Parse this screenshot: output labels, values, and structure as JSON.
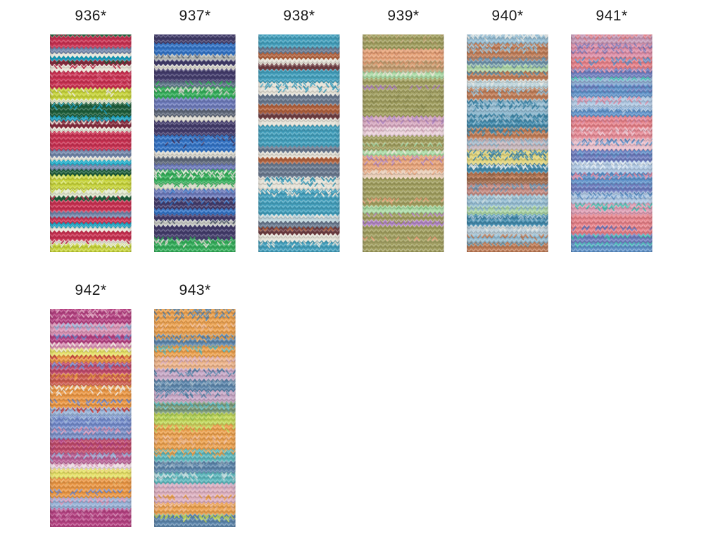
{
  "page": {
    "background": "#ffffff"
  },
  "card": {
    "label_color": "#1a1a1a",
    "swatches": [
      {
        "id": "936",
        "label": "936*",
        "row": 0,
        "col": 0,
        "stripes": [
          [
            6,
            "#1f5a36",
            "#b5274a",
            0.35
          ],
          [
            16,
            "#cc2e50",
            "",
            0
          ],
          [
            8,
            "#7186ab",
            "",
            0
          ],
          [
            5,
            "#e9e6d9",
            "",
            0
          ],
          [
            5,
            "#12a0c0",
            "",
            0
          ],
          [
            7,
            "#86293c",
            "#1f5a36",
            0.4
          ],
          [
            9,
            "#e9e6d9",
            "#cc2e50",
            0.2
          ],
          [
            24,
            "#cc2e50",
            "#e0607e",
            0.12
          ],
          [
            16,
            "#c6d335",
            "#e9e6d9",
            0.2
          ],
          [
            5,
            "#e4ead0",
            "",
            0
          ],
          [
            19,
            "#1a5c38",
            "#12a0c0",
            0.15
          ],
          [
            6,
            "#12a0c0",
            "#1a5c38",
            0.3
          ],
          [
            10,
            "#86293c",
            "#e9e6d9",
            0.35
          ],
          [
            6,
            "#e9e6d9",
            "",
            0
          ],
          [
            26,
            "#cc2e50",
            "",
            0
          ],
          [
            10,
            "#7186ab",
            "",
            0
          ],
          [
            5,
            "#e9e6d9",
            "",
            0
          ],
          [
            6,
            "#18aecb",
            "",
            0
          ],
          [
            7,
            "#7186ab",
            "",
            0
          ],
          [
            8,
            "#1a5c38",
            "",
            0
          ],
          [
            20,
            "#c6d335",
            "#dce67a",
            0.25
          ],
          [
            10,
            "#e4ead0",
            "#c6d335",
            0.3
          ],
          [
            6,
            "#1a5c38",
            "#cc2e50",
            0.35
          ],
          [
            16,
            "#cc2e50",
            "",
            0
          ],
          [
            8,
            "#7186ab",
            "",
            0
          ],
          [
            8,
            "#cc2e50",
            "",
            0
          ],
          [
            6,
            "#12a0c0",
            "",
            0
          ],
          [
            6,
            "#e9e6d9",
            "",
            0
          ],
          [
            13,
            "#cc2e50",
            "",
            0
          ],
          [
            5,
            "#e9e6d9",
            "#cc2e50",
            0.2
          ],
          [
            8,
            "#c6d335",
            "#e4ead0",
            0.45
          ]
        ]
      },
      {
        "id": "937",
        "label": "937*",
        "row": 0,
        "col": 1,
        "stripes": [
          [
            16,
            "#3f3a69",
            "",
            0
          ],
          [
            16,
            "#2f72c8",
            "",
            0
          ],
          [
            8,
            "#b9bdb9",
            "#5c6678",
            0.4
          ],
          [
            7,
            "#3f3a69",
            "",
            0
          ],
          [
            6,
            "#dedcd2",
            "",
            0
          ],
          [
            17,
            "#413a6b",
            "",
            0
          ],
          [
            8,
            "#5c7488",
            "#2fae57",
            0.3
          ],
          [
            16,
            "#2fae57",
            "#c9cfc4",
            0.45
          ],
          [
            16,
            "#6b79bc",
            "",
            0
          ],
          [
            10,
            "#5c6678",
            "",
            0
          ],
          [
            7,
            "#dedcd2",
            "",
            0
          ],
          [
            20,
            "#413a6b",
            "",
            0
          ],
          [
            23,
            "#2f72c8",
            "#3f3a69",
            0.15
          ],
          [
            8,
            "#dedcd2",
            "",
            0
          ],
          [
            10,
            "#5c6678",
            "",
            0
          ],
          [
            8,
            "#6b79bc",
            "",
            0
          ],
          [
            20,
            "#2fae57",
            "#dee2d4",
            0.5
          ],
          [
            8,
            "#d7dcc8",
            "#2fae57",
            0.3
          ],
          [
            12,
            "#6b79bc",
            "#2f72c8",
            0.2
          ],
          [
            16,
            "#413a6b",
            "#2f72c8",
            0.3
          ],
          [
            8,
            "#2f72c8",
            "",
            0
          ],
          [
            8,
            "#413a6b",
            "",
            0
          ],
          [
            8,
            "#c9cbc6",
            "#5c6678",
            0.35
          ],
          [
            16,
            "#413a6b",
            "",
            0
          ],
          [
            4,
            "#413a6b",
            "#2fae57",
            0.5
          ],
          [
            14,
            "#2fae57",
            "#dedcd2",
            0.25
          ]
        ]
      },
      {
        "id": "938",
        "label": "938*",
        "row": 0,
        "col": 2,
        "stripes": [
          [
            22,
            "#3f9fbd",
            "",
            0
          ],
          [
            8,
            "#68788f",
            "",
            0
          ],
          [
            8,
            "#b2603a",
            "",
            0
          ],
          [
            8,
            "#e6e3d8",
            "",
            0
          ],
          [
            8,
            "#6f3d41",
            "",
            0
          ],
          [
            18,
            "#3f9fbd",
            "",
            0
          ],
          [
            18,
            "#e6e3d8",
            "#3f9fbd",
            0.45
          ],
          [
            14,
            "#68788f",
            "",
            0
          ],
          [
            12,
            "#b2603a",
            "",
            0
          ],
          [
            8,
            "#6f3d41",
            "",
            0
          ],
          [
            10,
            "#e6e3d8",
            "",
            0
          ],
          [
            30,
            "#3f9fbd",
            "",
            0
          ],
          [
            8,
            "#68788f",
            "",
            0
          ],
          [
            8,
            "#e6e3d8",
            "",
            0
          ],
          [
            8,
            "#b2603a",
            "",
            0
          ],
          [
            20,
            "#68788f",
            "",
            0
          ],
          [
            18,
            "#e6e3d8",
            "#3f9fbd",
            0.45
          ],
          [
            16,
            "#3f9fbd",
            "#e6e3d8",
            0.35
          ],
          [
            20,
            "#3f9fbd",
            "",
            0
          ],
          [
            10,
            "#bcd3da",
            "#e6e3d8",
            0.3
          ],
          [
            8,
            "#68788f",
            "",
            0
          ],
          [
            10,
            "#6f3d41",
            "#b2603a",
            0.35
          ],
          [
            10,
            "#e6e3d8",
            "",
            0
          ],
          [
            12,
            "#3f9fbd",
            "#e6e3d8",
            0.3
          ]
        ]
      },
      {
        "id": "939",
        "label": "939*",
        "row": 0,
        "col": 3,
        "stripes": [
          [
            24,
            "#a09e5c",
            "#b8a06a",
            0.2
          ],
          [
            16,
            "#e9a377",
            "#d88f6a",
            0.2
          ],
          [
            16,
            "#c29a6c",
            "#e9a377",
            0.4
          ],
          [
            10,
            "#abdca6",
            "#eae2cf",
            0.4
          ],
          [
            10,
            "#a09e5c",
            "",
            0
          ],
          [
            10,
            "#a09e5c",
            "#b285c4",
            0.45
          ],
          [
            34,
            "#a09e5c",
            "#8f9050",
            0.2
          ],
          [
            16,
            "#d8a8c0",
            "#b285c4",
            0.4
          ],
          [
            12,
            "#ecd3dc",
            "#e0b8c8",
            0.3
          ],
          [
            10,
            "#a09e5c",
            "",
            0
          ],
          [
            10,
            "#a09e5c",
            "#abdca6",
            0.3
          ],
          [
            8,
            "#abdca6",
            "#eae2cf",
            0.35
          ],
          [
            20,
            "#e9a377",
            "#b285c4",
            0.3
          ],
          [
            12,
            "#eccfb8",
            "#e9a377",
            0.3
          ],
          [
            28,
            "#a09e5c",
            "",
            0
          ],
          [
            12,
            "#a09e5c",
            "#e9a377",
            0.35
          ],
          [
            10,
            "#abdca6",
            "#8fcf8a",
            0.3
          ],
          [
            10,
            "#a09e5c",
            "#b285c4",
            0.3
          ],
          [
            8,
            "#b285c4",
            "#a09e5c",
            0.3
          ],
          [
            16,
            "#a09e5c",
            "",
            0
          ],
          [
            8,
            "#a09e5c",
            "#e9a377",
            0.3
          ],
          [
            10,
            "#a09e5c",
            "",
            0
          ]
        ]
      },
      {
        "id": "940",
        "label": "940*",
        "row": 0,
        "col": 4,
        "stripes": [
          [
            16,
            "#93bcd3",
            "#e3e6e2",
            0.55
          ],
          [
            20,
            "#c07b54",
            "#93bcd3",
            0.5
          ],
          [
            10,
            "#6e93ad",
            "#c07b54",
            0.45
          ],
          [
            10,
            "#a9d4a4",
            "#6e93ad",
            0.5
          ],
          [
            12,
            "#c07b54",
            "#5a8fa8",
            0.55
          ],
          [
            12,
            "#bcd3da",
            "#e3e6e2",
            0.55
          ],
          [
            16,
            "#c07b54",
            "#93bcd3",
            0.45
          ],
          [
            20,
            "#93bcd3",
            "#3d88ab",
            0.5
          ],
          [
            20,
            "#3d88ab",
            "#93bcd3",
            0.55
          ],
          [
            16,
            "#c07b54",
            "#3d88ab",
            0.55
          ],
          [
            16,
            "#c6b6bc",
            "#93bcd3",
            0.5
          ],
          [
            20,
            "#e2d57a",
            "#3d88ab",
            0.6
          ],
          [
            12,
            "#3d88ab",
            "#e3e6e2",
            0.55
          ],
          [
            16,
            "#a06a4a",
            "#c07b54",
            0.55
          ],
          [
            16,
            "#c48a80",
            "#6e93ad",
            0.55
          ],
          [
            16,
            "#93bcd3",
            "#bcd3da",
            0.45
          ],
          [
            12,
            "#a9d4a4",
            "#93bcd3",
            0.5
          ],
          [
            16,
            "#3d88ab",
            "#93bcd3",
            0.55
          ],
          [
            12,
            "#b8cdd8",
            "#e3e6e2",
            0.45
          ],
          [
            12,
            "#93bcd3",
            "#c07b54",
            0.55
          ],
          [
            10,
            "#c07b54",
            "#5a8fa8",
            0.55
          ]
        ]
      },
      {
        "id": "941",
        "label": "941*",
        "row": 0,
        "col": 5,
        "stripes": [
          [
            16,
            "#c79ab8",
            "#e87f88",
            0.52
          ],
          [
            20,
            "#df8ea8",
            "#8379b8",
            0.52
          ],
          [
            16,
            "#e87f88",
            "#5e92cb",
            0.42
          ],
          [
            12,
            "#6d7cc0",
            "#df8ea8",
            0.42
          ],
          [
            10,
            "#8fb0d4",
            "#43c2b4",
            0.55
          ],
          [
            18,
            "#5e92cb",
            "#6d7cc0",
            0.52
          ],
          [
            16,
            "#aec8e4",
            "#df8ea8",
            0.47
          ],
          [
            12,
            "#5e92cb",
            "#aec8e4",
            0.42
          ],
          [
            16,
            "#e87f88",
            "#df8ea8",
            0.37
          ],
          [
            16,
            "#e88a96",
            "#ecc0cc",
            0.42
          ],
          [
            16,
            "#ecc0cc",
            "#5e92cb",
            0.42
          ],
          [
            16,
            "#6d7cc0",
            "#5e92cb",
            0.47
          ],
          [
            16,
            "#aec8e4",
            "#e3ecf4",
            0.42
          ],
          [
            16,
            "#5e92cb",
            "#df8ea8",
            0.47
          ],
          [
            12,
            "#6d7cc0",
            "#5e92cb",
            0.27
          ],
          [
            16,
            "#aec8e4",
            "#5e92cb",
            0.42
          ],
          [
            16,
            "#df9eb4",
            "#43c2b4",
            0.47
          ],
          [
            16,
            "#e87f88",
            "#e88a96",
            0.22
          ],
          [
            12,
            "#e87f88",
            "#6d7cc0",
            0.42
          ],
          [
            12,
            "#6d7cc0",
            "#43c2b4",
            0.47
          ],
          [
            10,
            "#5e92cb",
            "#43c2b4",
            0.52
          ]
        ]
      },
      {
        "id": "942",
        "label": "942*",
        "row": 1,
        "col": 0,
        "stripes": [
          [
            24,
            "#b73f82",
            "#dc94b6",
            0.4
          ],
          [
            16,
            "#dc94b6",
            "#97b2d8",
            0.45
          ],
          [
            12,
            "#b73f82",
            "#7089cc",
            0.35
          ],
          [
            8,
            "#dc94b6",
            "#eee6da",
            0.35
          ],
          [
            10,
            "#e5e164",
            "#eee6da",
            0.35
          ],
          [
            10,
            "#ec9640",
            "#cf4848",
            0.4
          ],
          [
            16,
            "#c2486a",
            "#7089cc",
            0.4
          ],
          [
            17,
            "#cf5a4e",
            "#ec9640",
            0.45
          ],
          [
            20,
            "#ec9640",
            "#eee6da",
            0.4
          ],
          [
            12,
            "#ec9640",
            "#7089cc",
            0.45
          ],
          [
            12,
            "#97b2d8",
            "#cf4848",
            0.4
          ],
          [
            16,
            "#7089cc",
            "#97b2d8",
            0.35
          ],
          [
            17,
            "#7a8fc8",
            "#dc94b6",
            0.4
          ],
          [
            20,
            "#c2486a",
            "#b73f82",
            0.35
          ],
          [
            15,
            "#bb5f96",
            "#97b2d8",
            0.4
          ],
          [
            8,
            "#eedce4",
            "#dc94b6",
            0.35
          ],
          [
            13,
            "#e5e164",
            "#ecd26a",
            0.35
          ],
          [
            16,
            "#ec9640",
            "#eeb060",
            0.15
          ],
          [
            12,
            "#ec9640",
            "#7089cc",
            0.45
          ],
          [
            16,
            "#97b2d8",
            "#dc94b6",
            0.4
          ],
          [
            23,
            "#b73f82",
            "#c86ba0",
            0.4
          ]
        ]
      },
      {
        "id": "943",
        "label": "943*",
        "row": 1,
        "col": 1,
        "stripes": [
          [
            24,
            "#eda04a",
            "#5a85ac",
            0.5
          ],
          [
            16,
            "#eda04a",
            "#eeb489",
            0.35
          ],
          [
            16,
            "#5a85ac",
            "#eda04a",
            0.55
          ],
          [
            16,
            "#eda04a",
            "#5bb8be",
            0.45
          ],
          [
            17,
            "#eeb489",
            "#deb0c0",
            0.45
          ],
          [
            16,
            "#c9a8c8",
            "#5a85ac",
            0.45
          ],
          [
            16,
            "#5a85ac",
            "#8aa8c0",
            0.5
          ],
          [
            16,
            "#c9a8c8",
            "#5a85ac",
            0.4
          ],
          [
            16,
            "#7a9a78",
            "#5bb8be",
            0.5
          ],
          [
            16,
            "#c0d756",
            "#a0c84e",
            0.5
          ],
          [
            16,
            "#eda04a",
            "#c0d756",
            0.5
          ],
          [
            20,
            "#eda04a",
            "#eeb489",
            0.4
          ],
          [
            17,
            "#5bb8be",
            "#eda04a",
            0.5
          ],
          [
            16,
            "#5a85ac",
            "#8aa8c0",
            0.4
          ],
          [
            16,
            "#5bb8be",
            "#bcd8dc",
            0.5
          ],
          [
            16,
            "#deb0c0",
            "#c9a8c8",
            0.4
          ],
          [
            12,
            "#deb0c0",
            "#eda04a",
            0.45
          ],
          [
            16,
            "#eda04a",
            "#eeb489",
            0.35
          ],
          [
            15,
            "#5a85ac",
            "#c0d756",
            0.55
          ]
        ]
      }
    ]
  }
}
